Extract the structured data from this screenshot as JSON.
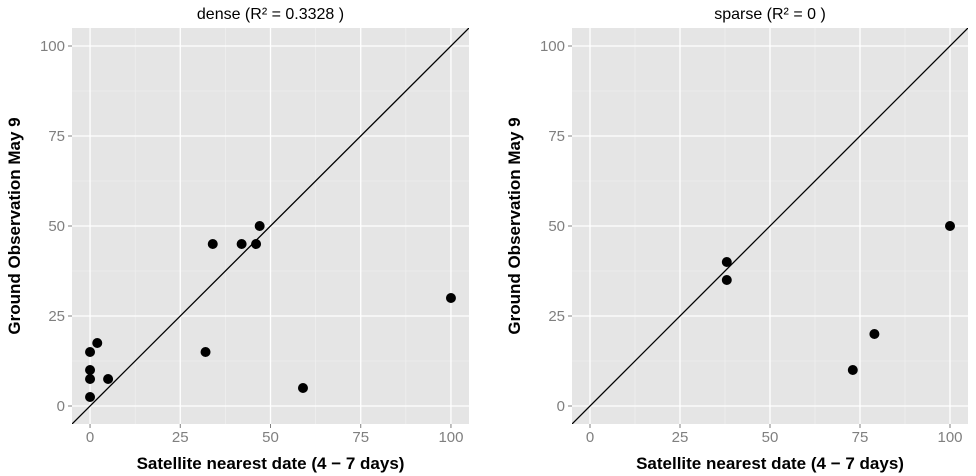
{
  "chart_data": [
    {
      "type": "scatter",
      "title": "dense (R² = 0.3328 )",
      "xlabel": "Satellite nearest date (4 − 7 days)",
      "ylabel": "Ground Observation May 9",
      "xlim": [
        -5,
        105
      ],
      "ylim": [
        -5,
        105
      ],
      "xticks": [
        0,
        25,
        50,
        75,
        100
      ],
      "yticks": [
        0,
        25,
        50,
        75,
        100
      ],
      "xtick_labels": [
        "0",
        "25",
        "50",
        "75",
        "100"
      ],
      "ytick_labels": [
        "0",
        "25",
        "50",
        "75",
        "100"
      ],
      "grid": true,
      "reference_line": "y = x",
      "points": [
        {
          "x": 0,
          "y": 15
        },
        {
          "x": 0,
          "y": 10
        },
        {
          "x": 0,
          "y": 7.5
        },
        {
          "x": 0,
          "y": 2.5
        },
        {
          "x": 2,
          "y": 17.5
        },
        {
          "x": 5,
          "y": 7.5
        },
        {
          "x": 32,
          "y": 15
        },
        {
          "x": 34,
          "y": 45
        },
        {
          "x": 42,
          "y": 45
        },
        {
          "x": 46,
          "y": 45
        },
        {
          "x": 47,
          "y": 50
        },
        {
          "x": 59,
          "y": 5
        },
        {
          "x": 100,
          "y": 30
        }
      ]
    },
    {
      "type": "scatter",
      "title": "sparse (R² = 0 )",
      "xlabel": "Satellite nearest date (4 − 7 days)",
      "ylabel": "Ground Observation May 9",
      "xlim": [
        -5,
        105
      ],
      "ylim": [
        -5,
        105
      ],
      "xticks": [
        0,
        25,
        50,
        75,
        100
      ],
      "yticks": [
        0,
        25,
        50,
        75,
        100
      ],
      "xtick_labels": [
        "0",
        "25",
        "50",
        "75",
        "100"
      ],
      "ytick_labels": [
        "0",
        "25",
        "50",
        "75",
        "100"
      ],
      "grid": true,
      "reference_line": "y = x",
      "points": [
        {
          "x": 38,
          "y": 40
        },
        {
          "x": 38,
          "y": 35
        },
        {
          "x": 73,
          "y": 10
        },
        {
          "x": 79,
          "y": 20
        },
        {
          "x": 100,
          "y": 50
        }
      ]
    }
  ]
}
